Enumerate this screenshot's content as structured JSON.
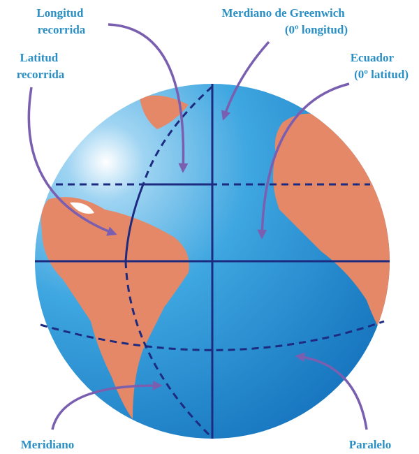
{
  "labels": {
    "longitude": [
      "Longitud",
      "recorrida"
    ],
    "latitude": [
      "Latitud",
      "recorrida"
    ],
    "greenwich": [
      "Merdiano de Greenwich",
      "(0º longitud)"
    ],
    "equator": [
      "Ecuador",
      "(0º latitud)"
    ],
    "meridian": [
      "Meridiano"
    ],
    "parallel": [
      "Paralelo"
    ]
  }
}
